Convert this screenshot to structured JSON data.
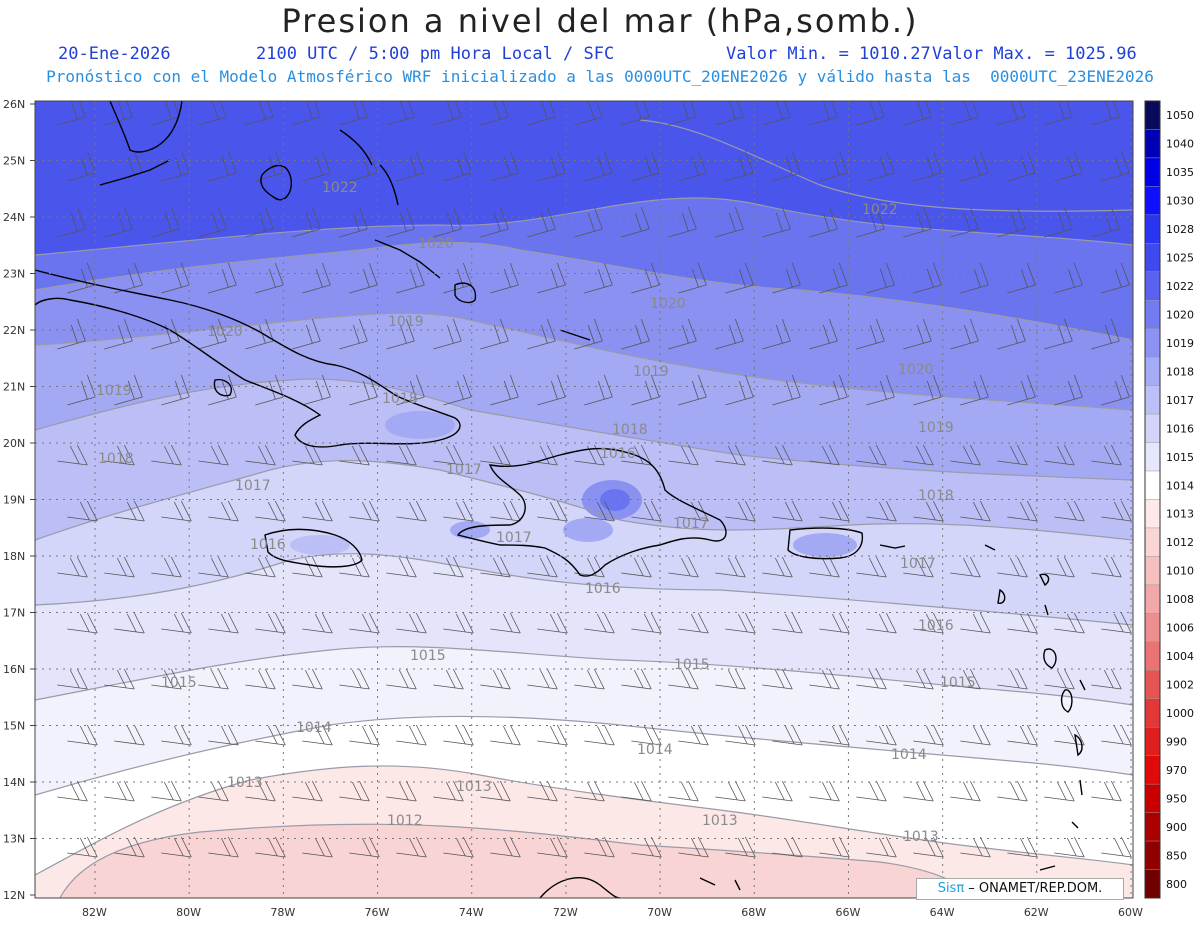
{
  "header": {
    "title": "Presion a nivel del mar (hPa,somb.)",
    "date": "20-Ene-2026",
    "time": "2100 UTC / 5:00 pm Hora Local / SFC",
    "min_label": "Valor Min. = 1010.27",
    "max_label": "Valor Max. = 1025.96",
    "forecast": "Pronóstico con el Modelo Atmosférico WRF inicializado a las 0000UTC_20ENE2026 y válido hasta las  0000UTC_23ENE2026"
  },
  "map": {
    "lat_labels": [
      "26N",
      "25N",
      "24N",
      "23N",
      "22N",
      "21N",
      "20N",
      "19N",
      "18N",
      "17N",
      "16N",
      "15N",
      "14N",
      "13N",
      "12N"
    ],
    "lon_labels": [
      "82W",
      "80W",
      "78W",
      "76W",
      "74W",
      "72W",
      "70W",
      "68W",
      "66W",
      "64W",
      "62W",
      "60W"
    ],
    "isobar_labels": [
      {
        "text": "1022"
      },
      {
        "text": "1022"
      },
      {
        "text": "1020"
      },
      {
        "text": "1020"
      },
      {
        "text": "1020"
      },
      {
        "text": "1020"
      },
      {
        "text": "1019"
      },
      {
        "text": "1019"
      },
      {
        "text": "1019"
      },
      {
        "text": "1019"
      },
      {
        "text": "1018"
      },
      {
        "text": "1018"
      },
      {
        "text": "1018"
      },
      {
        "text": "1018"
      },
      {
        "text": "1017"
      },
      {
        "text": "1017"
      },
      {
        "text": "1017"
      },
      {
        "text": "1017"
      },
      {
        "text": "1017"
      },
      {
        "text": "1016"
      },
      {
        "text": "1016"
      },
      {
        "text": "1016"
      },
      {
        "text": "1016"
      },
      {
        "text": "1015"
      },
      {
        "text": "1015"
      },
      {
        "text": "1015"
      },
      {
        "text": "1015"
      },
      {
        "text": "1014"
      },
      {
        "text": "1014"
      },
      {
        "text": "1014"
      },
      {
        "text": "1013"
      },
      {
        "text": "1013"
      },
      {
        "text": "1013"
      },
      {
        "text": "1013"
      },
      {
        "text": "1012"
      }
    ],
    "colors": {
      "p1025": "#4a55ec",
      "p1022": "#6a74ef",
      "p1020": "#8a91f1",
      "p1019": "#a4a9f3",
      "p1018": "#bcbff6",
      "p1017": "#d3d5f9",
      "p1016": "#e4e5fb",
      "p1015": "#f2f2fd",
      "p1014": "#ffffff",
      "p1013": "#fde8e8",
      "p1012": "#f9d4d4",
      "land_outline": "#000000"
    }
  },
  "colorbar": {
    "levels": [
      "1050",
      "1040",
      "1035",
      "1030",
      "1028",
      "1025",
      "1022",
      "1020",
      "1019",
      "1018",
      "1017",
      "1016",
      "1015",
      "1014",
      "1013",
      "1012",
      "1010",
      "1008",
      "1006",
      "1004",
      "1002",
      "1000",
      "990",
      "970",
      "950",
      "900",
      "850",
      "800"
    ],
    "colors": [
      "#0a0a5c",
      "#0000b4",
      "#0000e6",
      "#1010ff",
      "#2a35f0",
      "#3f49ee",
      "#5a63f0",
      "#737bf1",
      "#8d93f3",
      "#a6abf5",
      "#bdc0f7",
      "#d2d4fa",
      "#e6e7fc",
      "#ffffff",
      "#fde9e9",
      "#fad5d5",
      "#f6c0c0",
      "#f2a8a8",
      "#ee8f8f",
      "#ea7373",
      "#e65555",
      "#e23838",
      "#e01e1e",
      "#e00a0a",
      "#c80000",
      "#aa0000",
      "#900000",
      "#700000"
    ]
  },
  "credit": {
    "brand": "Sisπ",
    "text": " – ONAMET/REP.DOM."
  }
}
